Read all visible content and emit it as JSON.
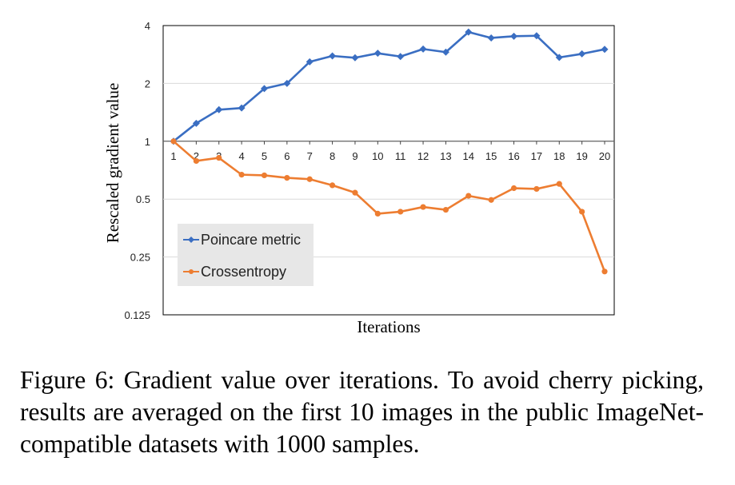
{
  "chart_data": {
    "type": "line",
    "title": "",
    "xlabel": "Iterations",
    "ylabel": "Rescaled gradient value",
    "y_scale": "log2",
    "ylim": [
      0.125,
      4
    ],
    "y_ticks": [
      0.125,
      0.25,
      0.5,
      1,
      2,
      4
    ],
    "y_tick_labels": [
      "0.125",
      "0.25",
      "0.5",
      "1",
      "2",
      "4"
    ],
    "x": [
      "1",
      "2",
      "3",
      "4",
      "5",
      "6",
      "7",
      "8",
      "9",
      "10",
      "11",
      "12",
      "13",
      "14",
      "15",
      "16",
      "17",
      "18",
      "19",
      "20"
    ],
    "x_axis_crosses_at": 1,
    "grid": true,
    "legend_position": "lower-left",
    "series": [
      {
        "name": "Poincare metric",
        "color": "#3A6EC2",
        "values": [
          1.0,
          1.24,
          1.46,
          1.49,
          1.88,
          2.0,
          2.59,
          2.78,
          2.72,
          2.87,
          2.76,
          3.02,
          2.91,
          3.7,
          3.45,
          3.52,
          3.54,
          2.73,
          2.85,
          3.01
        ]
      },
      {
        "name": "Crossentropy",
        "color": "#ED7D31",
        "values": [
          1.0,
          0.79,
          0.82,
          0.67,
          0.665,
          0.645,
          0.635,
          0.59,
          0.54,
          0.42,
          0.43,
          0.455,
          0.44,
          0.52,
          0.495,
          0.57,
          0.565,
          0.6,
          0.43,
          0.21
        ]
      }
    ]
  },
  "caption": "Figure 6: Gradient value over iterations. To avoid cherry picking, results are averaged on the first 10 images in the public ImageNet-compatible datasets with 1000 samples."
}
